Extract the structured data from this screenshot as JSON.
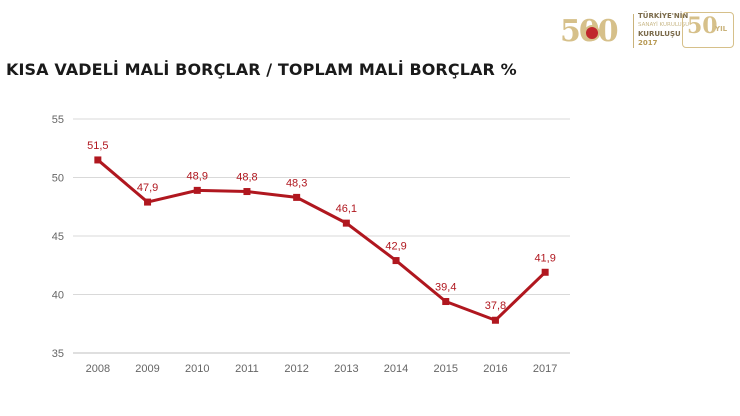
{
  "header": {
    "logo": {
      "big_number": "500",
      "badge_text": "İSO",
      "line1": "TÜRKİYE'NİN",
      "line2": "SANAYİ KURULUŞU",
      "line3": "KURULUŞU",
      "year": "2017",
      "anniversary_number": "50",
      "anniversary_unit": "YIL"
    }
  },
  "chart_data": {
    "type": "line",
    "title": "KISA VADELİ MALİ BORÇLAR / TOPLAM MALİ BORÇLAR %",
    "xlabel": "",
    "ylabel": "",
    "categories": [
      "2008",
      "2009",
      "2010",
      "2011",
      "2012",
      "2013",
      "2014",
      "2015",
      "2016",
      "2017"
    ],
    "series": [
      {
        "values": [
          51.5,
          47.9,
          48.9,
          48.8,
          48.3,
          46.1,
          42.9,
          39.4,
          37.8,
          41.9
        ],
        "labels": [
          "51,5",
          "47,9",
          "48,9",
          "48,8",
          "48,3",
          "46,1",
          "42,9",
          "39,4",
          "37,8",
          "41,9"
        ]
      }
    ],
    "ylim": [
      35,
      55
    ],
    "yticks": [
      35,
      40,
      45,
      50,
      55
    ],
    "ytick_labels": [
      "35",
      "40",
      "45",
      "50",
      "55"
    ],
    "grid": true,
    "legend": "none",
    "colors": {
      "series": "#b0171f",
      "grid": "#d9d9d9",
      "axis_text": "#666666"
    }
  }
}
